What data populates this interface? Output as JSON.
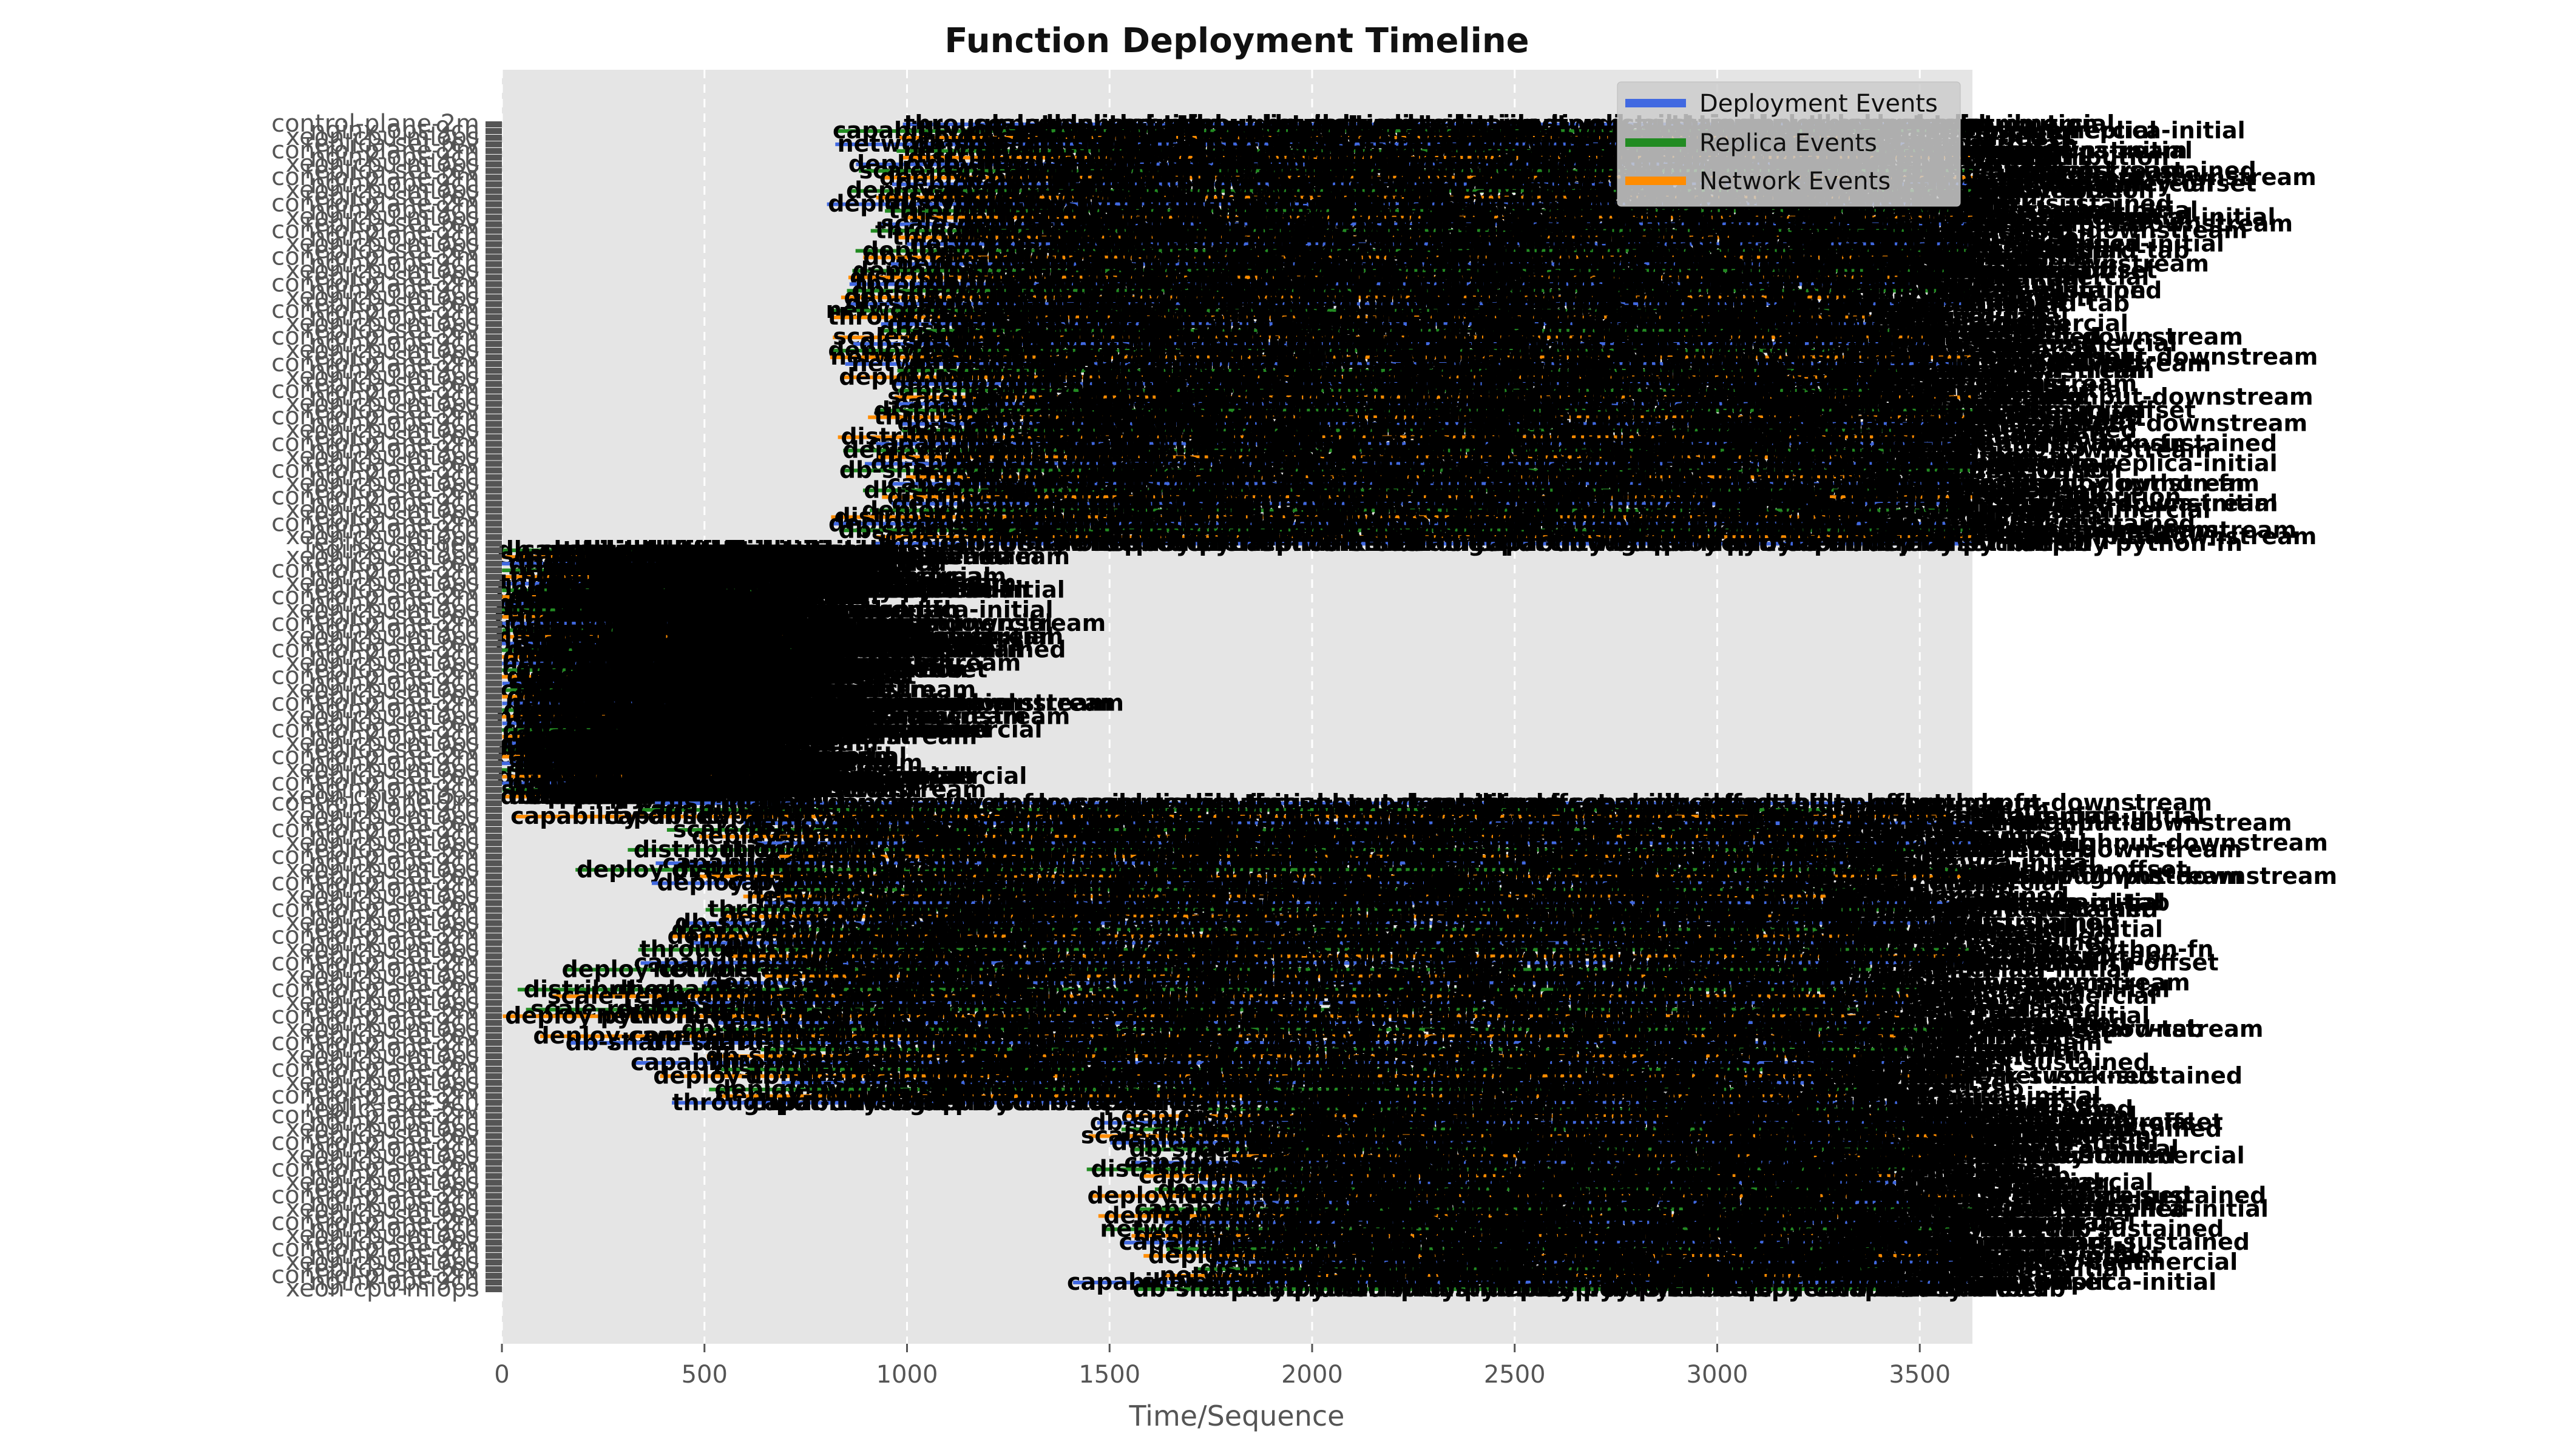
{
  "chart_data": {
    "type": "timeline",
    "title": "Function Deployment Timeline",
    "xlabel": "Time/Sequence",
    "ylabel": "",
    "xlim": [
      0,
      3630
    ],
    "x_ticks": [
      0,
      500,
      1000,
      1500,
      2000,
      2500,
      3000,
      3500
    ],
    "grid": true,
    "legend_position": "top-right",
    "series": [
      {
        "name": "Deployment Events",
        "color": "#4169e1"
      },
      {
        "name": "Replica Events",
        "color": "#228b22"
      },
      {
        "name": "Network Events",
        "color": "#ff8c00"
      }
    ],
    "bands": [
      {
        "count": 64,
        "label_start": [
          800,
          560,
          1000
        ],
        "end": [
          3300,
          3800
        ],
        "events": 16
      },
      {
        "count": 38,
        "label_start": [
          0,
          0,
          0
        ],
        "end": [
          140,
          800
        ],
        "events": 14
      },
      {
        "count": 46,
        "label_start": [
          0,
          230,
          700
        ],
        "end": [
          3200,
          3800
        ],
        "events": 16
      },
      {
        "count": 28,
        "label_start": [
          1400,
          1500,
          1800
        ],
        "end": [
          3200,
          3800
        ],
        "events": 14
      }
    ],
    "function_names": [
      "control-plane-2m",
      "nginx-opt-9ch",
      "xeon-cpu-mlops",
      "replica-set-rev"
    ],
    "event_labels": [
      "deploy python-fn",
      "distribution",
      "capability-offset",
      "throughput-downstream",
      "scale-replica-initial",
      "network-sustained",
      "deploy-commercial",
      "db-shard-tab"
    ]
  }
}
